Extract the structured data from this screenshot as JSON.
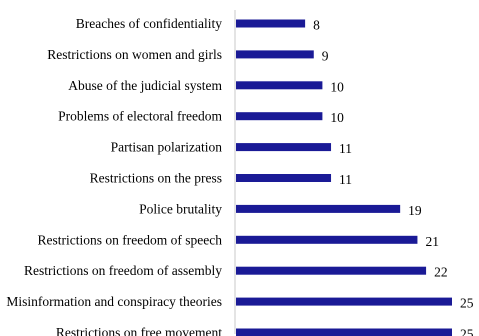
{
  "chart_data": {
    "type": "bar",
    "orientation": "horizontal",
    "categories": [
      "Breaches of confidentiality",
      "Restrictions on women and girls",
      "Abuse of the judicial system",
      "Problems of electoral freedom",
      "Partisan polarization",
      "Restrictions on the press",
      "Police brutality",
      "Restrictions on freedom of speech",
      "Restrictions on freedom of assembly",
      "Misinformation and conspiracy theories",
      "Restrictions on free movement"
    ],
    "values": [
      8,
      9,
      10,
      10,
      11,
      11,
      19,
      21,
      22,
      25,
      25
    ],
    "title": "",
    "xlabel": "",
    "ylabel": "",
    "xlim": [
      0,
      25
    ],
    "grid": false,
    "legend": "none",
    "bar_color": "#1a1a96",
    "axis_color": "#c8c8c8"
  }
}
